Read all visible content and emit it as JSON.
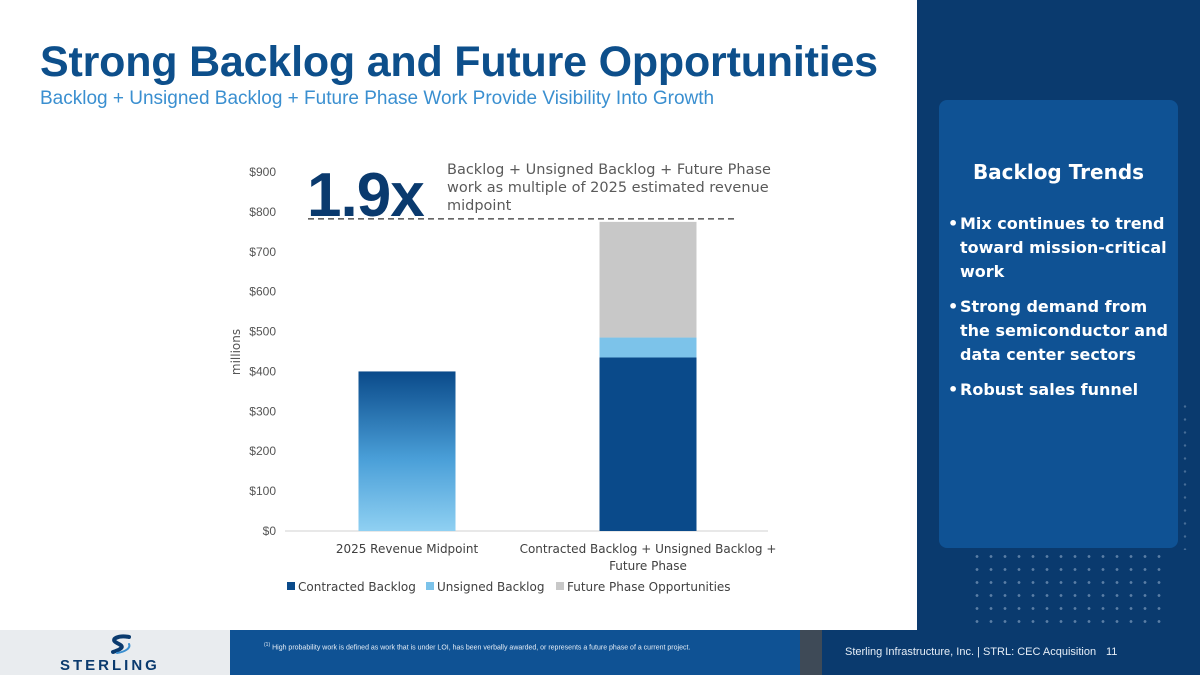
{
  "slide": {
    "title": "Strong Backlog and Future Opportunities",
    "subtitle": "Backlog + Unsigned Backlog + Future Phase Work Provide Visibility Into Growth"
  },
  "callout": {
    "multiple": "1.9x",
    "note": "Backlog + Unsigned Backlog + Future Phase work as multiple of 2025 estimated revenue midpoint"
  },
  "sidebar": {
    "title": "Backlog Trends",
    "bullets": [
      "Mix continues to trend toward mission-critical work",
      "Strong demand from the semiconductor and data center sectors",
      "Robust sales funnel"
    ]
  },
  "footer": {
    "logo_text": "STERLING",
    "footnote_marker": "(1)",
    "footnote": "High probability work is defined as work that is under LOI, has been verbally awarded, or represents a future phase of a current project.",
    "company": "Sterling Infrastructure, Inc. | STRL: CEC Acquisition",
    "page_number": "11"
  },
  "colors": {
    "title": "#0d4f8b",
    "subtitle": "#3a8fd0",
    "contracted": "#0a4a8a",
    "unsigned": "#7cc3ea",
    "future": "#c8c8c8",
    "navy": "#0a3a6e"
  },
  "chart_data": {
    "type": "bar",
    "stacked": true,
    "ylabel": "millions",
    "ylim": [
      0,
      900
    ],
    "yticks": [
      0,
      100,
      200,
      300,
      400,
      500,
      600,
      700,
      800,
      900
    ],
    "ytick_labels": [
      "$0",
      "$100",
      "$200",
      "$300",
      "$400",
      "$500",
      "$600",
      "$700",
      "$800",
      "$900"
    ],
    "categories": [
      "2025 Revenue Midpoint",
      "Contracted Backlog + Unsigned Backlog + Future Phase"
    ],
    "category_lines": [
      [
        "2025 Revenue Midpoint"
      ],
      [
        "Contracted Backlog +  Unsigned Backlog +",
        "Future Phase"
      ]
    ],
    "series": [
      {
        "name": "Contracted Backlog",
        "values": [
          0,
          435
        ]
      },
      {
        "name": "Unsigned Backlog",
        "values": [
          0,
          50
        ]
      },
      {
        "name": "Future Phase Opportunities",
        "values": [
          0,
          290
        ]
      }
    ],
    "revenue_midpoint": 400,
    "reference_line": 775,
    "legend_position": "bottom"
  }
}
